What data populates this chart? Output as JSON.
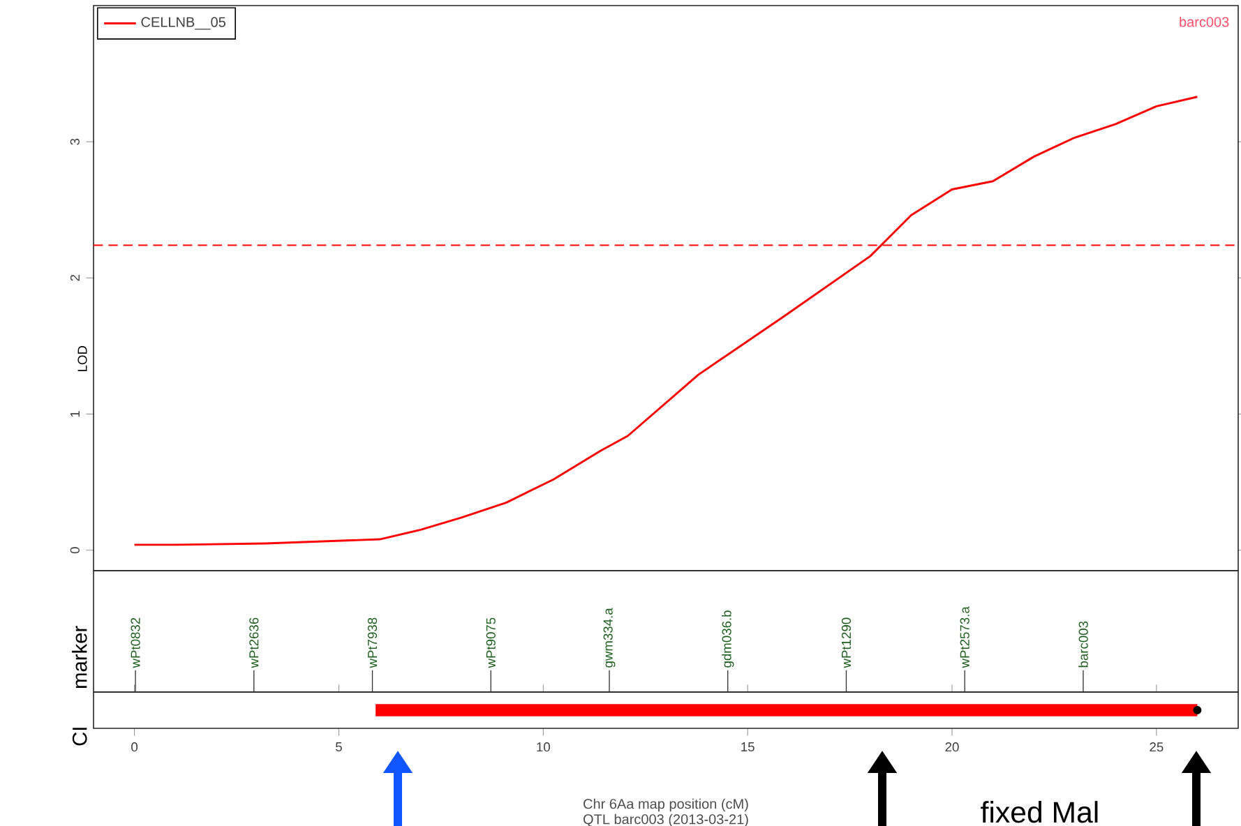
{
  "chart_data": [
    {
      "type": "line",
      "ylabel": "LOD",
      "xlim": [
        -1,
        27
      ],
      "ylim": [
        -0.15,
        4
      ],
      "yticks": [
        0,
        1,
        2,
        3
      ],
      "tick_labels": "y",
      "legend": "top left",
      "series": [
        {
          "name": "CELLNB__05",
          "color": "#ff0000",
          "x": [
            0,
            1,
            3.2,
            6.0,
            7.0,
            8.0,
            9.1,
            10.25,
            11.4,
            12.07,
            13.8,
            15.9,
            18.0,
            19.0,
            20.0,
            21.0,
            22.0,
            23.0,
            24.0,
            25.0,
            26.0
          ],
          "values": [
            0.04,
            0.04,
            0.05,
            0.08,
            0.15,
            0.24,
            0.35,
            0.52,
            0.73,
            0.84,
            1.29,
            1.72,
            2.16,
            2.46,
            2.65,
            2.71,
            2.89,
            3.03,
            3.13,
            3.26,
            3.33
          ]
        }
      ],
      "ref_lines": [
        {
          "axis": "y",
          "value": 2.24,
          "color": "#ff0000",
          "line_style": "dashed"
        }
      ],
      "annotations": [
        "barc003"
      ]
    },
    {
      "type": "other",
      "ylabel": "marker",
      "annotations": [
        "wPt0832",
        "wPt2636",
        "wPt7938",
        "wPt9075",
        "gwm334.a",
        "gdm036.b",
        "wPt1290",
        "wPt2573.a",
        "barc003"
      ]
    },
    {
      "type": "bar",
      "orientation": "horizontal",
      "ylabel": "CI",
      "xlabel": "Chr 6Aa map position (cM)",
      "categories": [
        null
      ],
      "xlim": [
        -1,
        27
      ],
      "xticks": [
        0,
        5,
        10,
        15,
        20,
        25
      ],
      "tick_labels": "x",
      "series": [
        {
          "type": "bar",
          "base": [
            5.9
          ],
          "values": [
            20.1
          ],
          "color": "#ff0000"
        }
      ],
      "annotations": [
        "QTL barc003 (2013-03-21)",
        "fixed Mal"
      ]
    }
  ]
}
